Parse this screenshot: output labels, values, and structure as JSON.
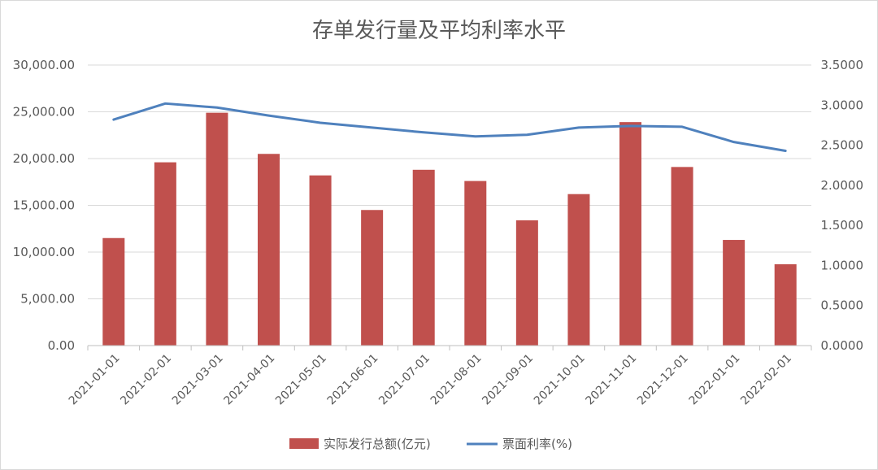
{
  "chart_data": {
    "type": "bar",
    "title": "存单发行量及平均利率水平",
    "categories": [
      "2021-01-01",
      "2021-02-01",
      "2021-03-01",
      "2021-04-01",
      "2021-05-01",
      "2021-06-01",
      "2021-07-01",
      "2021-08-01",
      "2021-09-01",
      "2021-10-01",
      "2021-11-01",
      "2021-12-01",
      "2022-01-01",
      "2022-02-01"
    ],
    "series": [
      {
        "name": "实际发行总额(亿元)",
        "type": "bar",
        "axis": "left",
        "color": "#c0504d",
        "values": [
          11500,
          19600,
          24900,
          20500,
          18200,
          14500,
          18800,
          17600,
          13400,
          16200,
          23900,
          19100,
          11300,
          8700
        ]
      },
      {
        "name": "票面利率(%)",
        "type": "line",
        "axis": "right",
        "color": "#4f81bd",
        "values": [
          2.82,
          3.02,
          2.97,
          2.87,
          2.78,
          2.72,
          2.66,
          2.61,
          2.63,
          2.72,
          2.74,
          2.73,
          2.54,
          2.43
        ]
      }
    ],
    "y_left": {
      "ylim": [
        0,
        30000
      ],
      "ticks": [
        "0.00",
        "5,000.00",
        "10,000.00",
        "15,000.00",
        "20,000.00",
        "25,000.00",
        "30,000.00"
      ]
    },
    "y_right": {
      "ylim": [
        0,
        3.5
      ],
      "ticks": [
        "0.0000",
        "0.5000",
        "1.0000",
        "1.5000",
        "2.0000",
        "2.5000",
        "3.0000",
        "3.5000"
      ]
    },
    "grid": true,
    "legend": "bottom"
  }
}
